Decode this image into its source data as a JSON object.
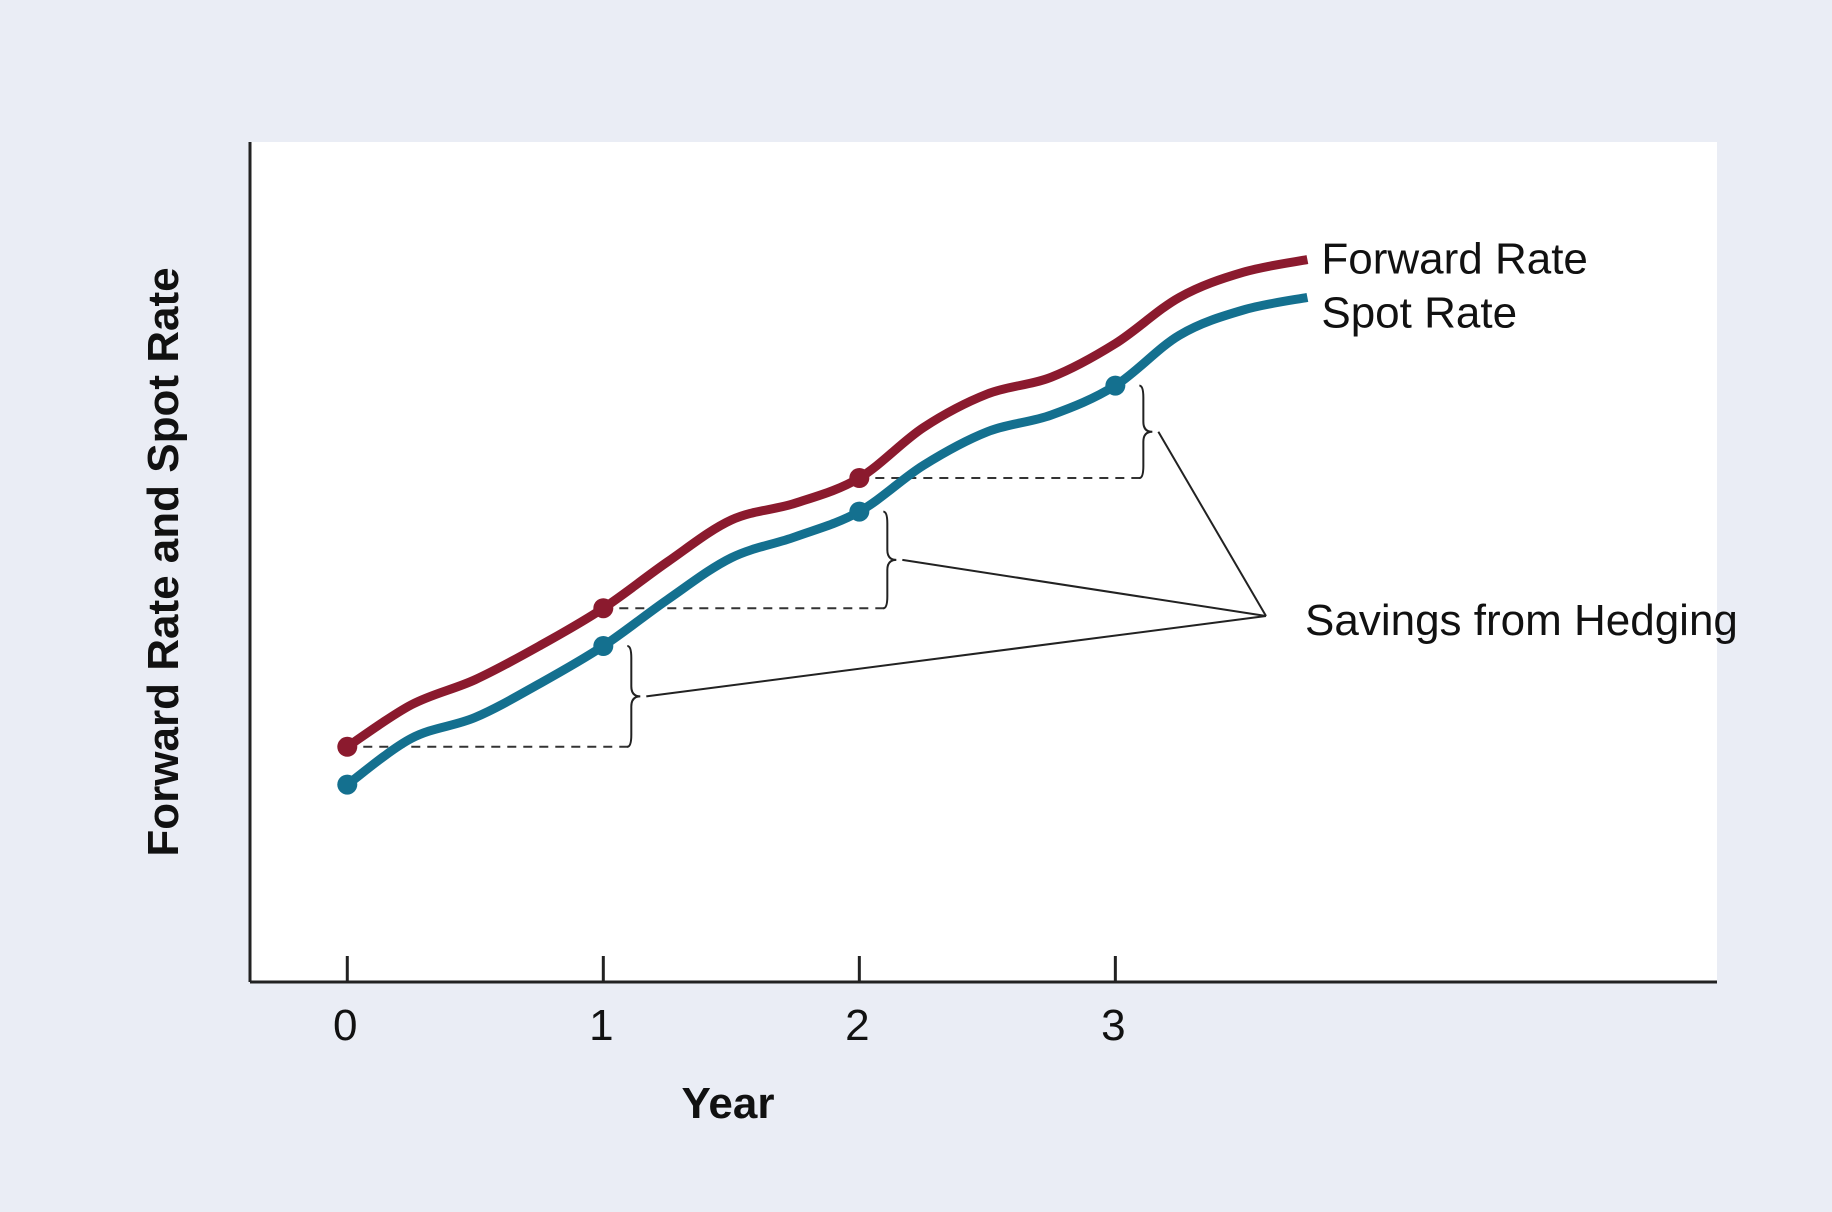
{
  "chart_data": {
    "type": "line",
    "xlabel": "Year",
    "ylabel": "Forward Rate and Spot Rate",
    "x_ticks": [
      "0",
      "1",
      "2",
      "3"
    ],
    "xlim": [
      -0.38,
      5.35
    ],
    "ylim": [
      0,
      100
    ],
    "grid": false,
    "legend": "inline labels at right end of lines",
    "series": [
      {
        "name": "Forward Rate",
        "color": "#8b1a2e",
        "x": [
          0,
          0.25,
          0.5,
          0.75,
          1,
          1.25,
          1.5,
          1.75,
          2,
          2.25,
          2.5,
          2.75,
          3,
          3.25,
          3.5,
          3.75
        ],
        "y": [
          28,
          33,
          36,
          40,
          44.5,
          50,
          55,
          57,
          60,
          66,
          70,
          72,
          76,
          81.5,
          84.5,
          86
        ],
        "markers_at": [
          0,
          1,
          2
        ]
      },
      {
        "name": "Spot Rate",
        "color": "#14708f",
        "x": [
          0,
          0.25,
          0.5,
          0.75,
          1,
          1.25,
          1.5,
          1.75,
          2,
          2.25,
          2.5,
          2.75,
          3,
          3.25,
          3.5,
          3.75
        ],
        "y": [
          23.5,
          29,
          31.5,
          35.5,
          40,
          45.5,
          50.5,
          53,
          56,
          61.5,
          65.5,
          67.5,
          71,
          77,
          80,
          81.5
        ],
        "markers_at": [
          0,
          1,
          2,
          3
        ]
      }
    ],
    "annotations": [
      {
        "text": "Savings from Hedging",
        "type": "brace-callouts",
        "years": [
          1,
          2,
          3
        ]
      }
    ]
  }
}
